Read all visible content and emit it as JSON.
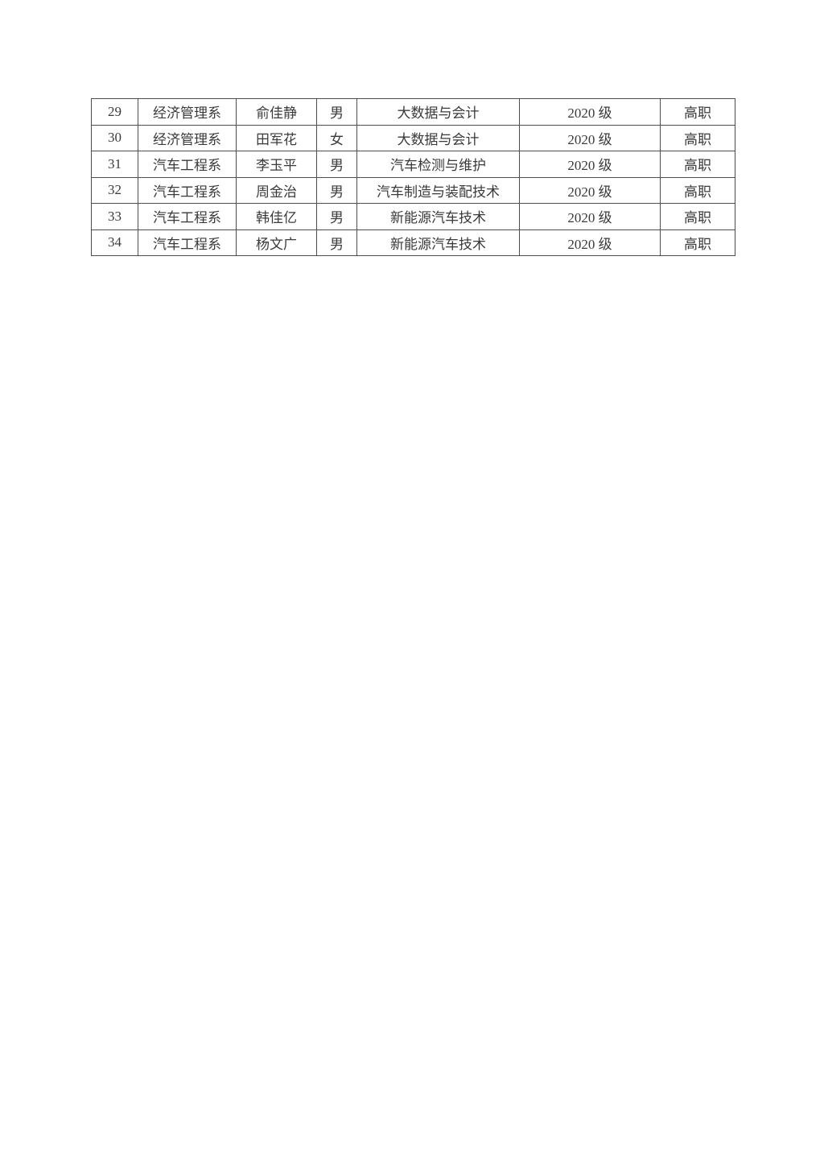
{
  "colors": {
    "page-bg": "#ffffff",
    "border-color": "#4e4e4e",
    "text-color": "#3a3a3a"
  },
  "table": {
    "rows": [
      {
        "cells": [
          "29",
          "经济管理系",
          "俞佳静",
          "男",
          "大数据与会计",
          "2020 级",
          "高职"
        ]
      },
      {
        "cells": [
          "30",
          "经济管理系",
          "田军花",
          "女",
          "大数据与会计",
          "2020 级",
          "高职"
        ]
      },
      {
        "cells": [
          "31",
          "汽车工程系",
          "李玉平",
          "男",
          "汽车检测与维护",
          "2020 级",
          "高职"
        ]
      },
      {
        "cells": [
          "32",
          "汽车工程系",
          "周金治",
          "男",
          "汽车制造与装配技术",
          "2020 级",
          "高职"
        ]
      },
      {
        "cells": [
          "33",
          "汽车工程系",
          "韩佳亿",
          "男",
          "新能源汽车技术",
          "2020 级",
          "高职"
        ]
      },
      {
        "cells": [
          "34",
          "汽车工程系",
          "杨文广",
          "男",
          "新能源汽车技术",
          "2020 级",
          "高职"
        ]
      }
    ]
  }
}
